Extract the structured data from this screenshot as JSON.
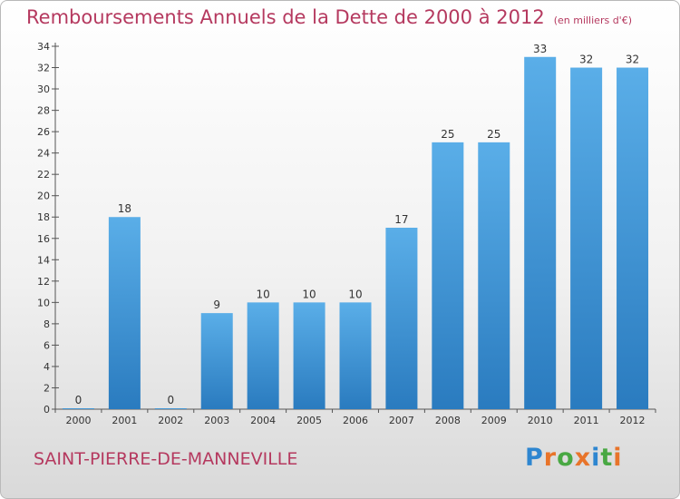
{
  "chart_data": {
    "type": "bar",
    "title": "Remboursements Annuels de la Dette de 2000 à 2012",
    "unit_label": "(en milliers d'€)",
    "categories": [
      "2000",
      "2001",
      "2002",
      "2003",
      "2004",
      "2005",
      "2006",
      "2007",
      "2008",
      "2009",
      "2010",
      "2011",
      "2012"
    ],
    "values": [
      0,
      18,
      0,
      9,
      10,
      10,
      10,
      17,
      25,
      25,
      33,
      32,
      32
    ],
    "data_labels": [
      "0",
      "18",
      "0",
      "9",
      "10",
      "10",
      "10",
      "17",
      "25",
      "25",
      "33",
      "32",
      "32"
    ],
    "yticks": [
      "0",
      "2",
      "4",
      "6",
      "8",
      "10",
      "12",
      "14",
      "16",
      "18",
      "20",
      "22",
      "24",
      "26",
      "28",
      "30",
      "32",
      "34"
    ],
    "ylim": [
      0,
      34
    ],
    "grid": false,
    "bar_color_top": "#5aaee8",
    "bar_color_bottom": "#2a7bbf",
    "xlabel": "",
    "ylabel": ""
  },
  "footer": {
    "commune": "SAINT-PIERRE-DE-MANNEVILLE",
    "logo_letters": [
      {
        "ch": "P",
        "color": "#2e86d0"
      },
      {
        "ch": "r",
        "color": "#e8742a"
      },
      {
        "ch": "o",
        "color": "#49a843"
      },
      {
        "ch": "x",
        "color": "#e8742a"
      },
      {
        "ch": "i",
        "color": "#2e86d0"
      },
      {
        "ch": "t",
        "color": "#49a843"
      },
      {
        "ch": "i",
        "color": "#e8742a"
      }
    ]
  }
}
